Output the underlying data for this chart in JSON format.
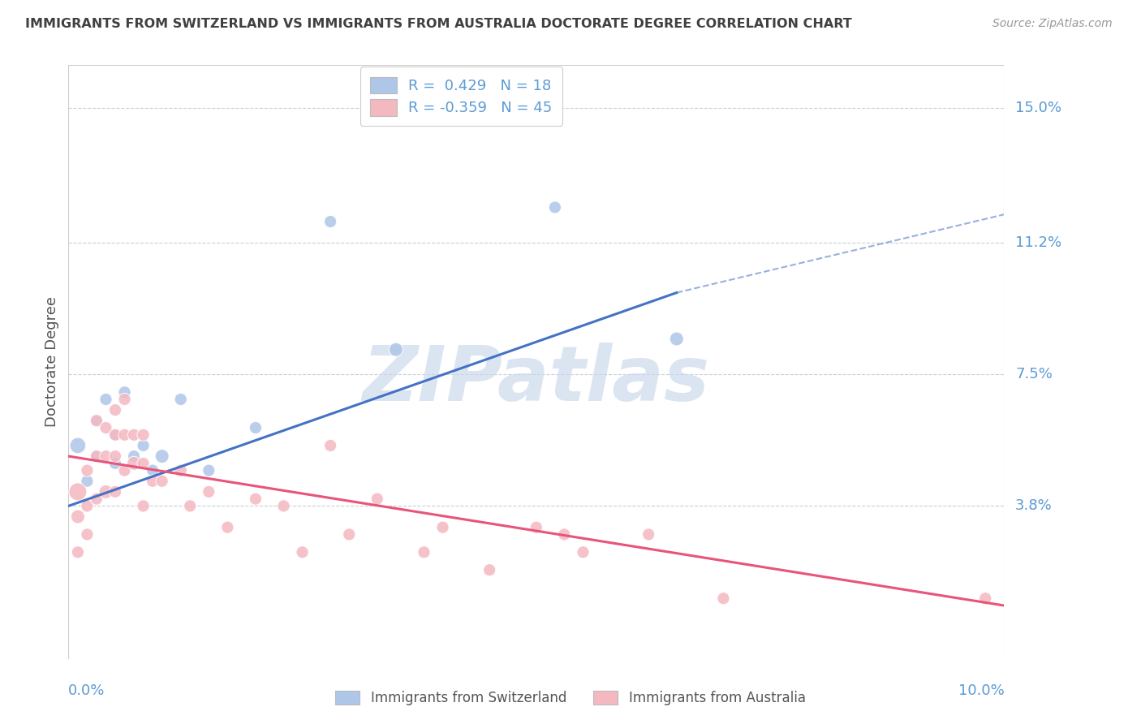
{
  "title": "IMMIGRANTS FROM SWITZERLAND VS IMMIGRANTS FROM AUSTRALIA DOCTORATE DEGREE CORRELATION CHART",
  "source": "Source: ZipAtlas.com",
  "ylabel": "Doctorate Degree",
  "ytick_labels": [
    "3.8%",
    "7.5%",
    "11.2%",
    "15.0%"
  ],
  "ytick_values": [
    0.038,
    0.075,
    0.112,
    0.15
  ],
  "xlim": [
    0.0,
    0.1
  ],
  "ylim": [
    -0.005,
    0.162
  ],
  "watermark": "ZIPatlas",
  "swiss_color": "#aec6e8",
  "aus_color": "#f4b8c1",
  "swiss_line_color": "#4472c4",
  "aus_line_color": "#e8547a",
  "title_color": "#404040",
  "axis_label_color": "#5b9bd5",
  "swiss_scatter_x": [
    0.001,
    0.002,
    0.003,
    0.003,
    0.004,
    0.005,
    0.005,
    0.006,
    0.007,
    0.008,
    0.009,
    0.01,
    0.012,
    0.015,
    0.02,
    0.028,
    0.035,
    0.052,
    0.065
  ],
  "swiss_scatter_y": [
    0.055,
    0.045,
    0.052,
    0.062,
    0.068,
    0.058,
    0.05,
    0.07,
    0.052,
    0.055,
    0.048,
    0.052,
    0.068,
    0.048,
    0.06,
    0.118,
    0.082,
    0.122,
    0.085
  ],
  "swiss_scatter_sizes": [
    200,
    120,
    100,
    120,
    120,
    100,
    120,
    120,
    120,
    120,
    120,
    150,
    120,
    120,
    120,
    120,
    150,
    120,
    150
  ],
  "aus_scatter_x": [
    0.001,
    0.001,
    0.001,
    0.002,
    0.002,
    0.002,
    0.003,
    0.003,
    0.003,
    0.004,
    0.004,
    0.004,
    0.005,
    0.005,
    0.005,
    0.005,
    0.006,
    0.006,
    0.006,
    0.007,
    0.007,
    0.008,
    0.008,
    0.008,
    0.009,
    0.01,
    0.012,
    0.013,
    0.015,
    0.017,
    0.02,
    0.023,
    0.025,
    0.028,
    0.03,
    0.033,
    0.038,
    0.04,
    0.045,
    0.05,
    0.053,
    0.055,
    0.062,
    0.07,
    0.098
  ],
  "aus_scatter_y": [
    0.042,
    0.035,
    0.025,
    0.048,
    0.038,
    0.03,
    0.062,
    0.052,
    0.04,
    0.06,
    0.052,
    0.042,
    0.065,
    0.058,
    0.052,
    0.042,
    0.068,
    0.058,
    0.048,
    0.058,
    0.05,
    0.05,
    0.058,
    0.038,
    0.045,
    0.045,
    0.048,
    0.038,
    0.042,
    0.032,
    0.04,
    0.038,
    0.025,
    0.055,
    0.03,
    0.04,
    0.025,
    0.032,
    0.02,
    0.032,
    0.03,
    0.025,
    0.03,
    0.012,
    0.012
  ],
  "aus_scatter_sizes": [
    250,
    150,
    120,
    120,
    120,
    120,
    120,
    120,
    120,
    120,
    120,
    150,
    120,
    120,
    120,
    120,
    120,
    120,
    120,
    120,
    150,
    120,
    120,
    120,
    120,
    120,
    120,
    120,
    120,
    120,
    120,
    120,
    120,
    120,
    120,
    120,
    120,
    120,
    120,
    120,
    120,
    120,
    120,
    120,
    120
  ],
  "swiss_line_x": [
    0.0,
    0.065
  ],
  "swiss_line_y": [
    0.038,
    0.098
  ],
  "aus_line_x": [
    0.0,
    0.1
  ],
  "aus_line_y": [
    0.052,
    0.01
  ],
  "dash_line_x": [
    0.065,
    0.1
  ],
  "dash_line_y": [
    0.098,
    0.12
  ]
}
